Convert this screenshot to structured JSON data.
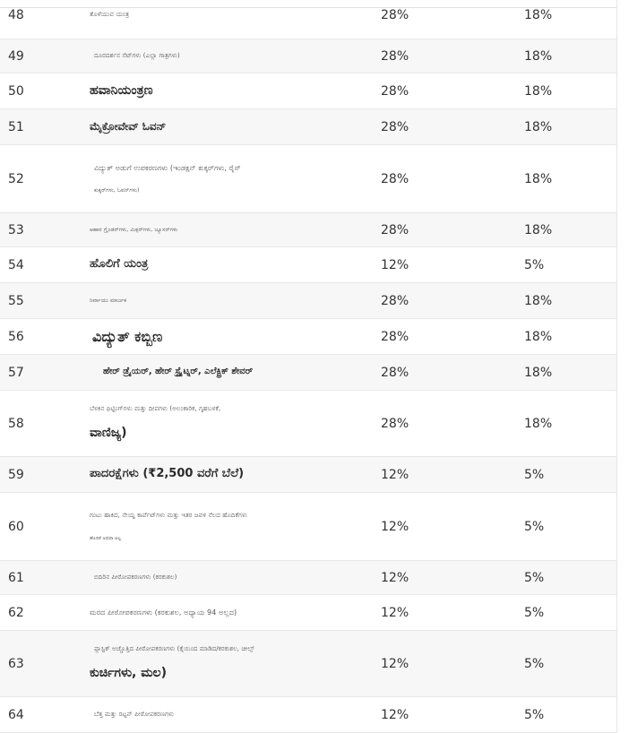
{
  "rows": [
    {
      "no": "48",
      "item": "ತೊಳೆಯುವ ಯಂತ್ರ",
      "old": "28%",
      "new": "18%"
    },
    {
      "no": "49",
      "item": "ದೂರದರ್ಶನ ಸೆಟ್‌ಗಳು (ಎಲ್ಲಾ ಗಾತ್ರಗಳು)",
      "old": "28%",
      "new": "18%"
    },
    {
      "no": "50",
      "item": "ಹವಾನಿಯಂತ್ರಣ",
      "old": "28%",
      "new": "18%"
    },
    {
      "no": "51",
      "item": "ಮೈಕ್ರೋವೇವ್ ಓವನ್",
      "old": "28%",
      "new": "18%"
    },
    {
      "no": "52",
      "item_l1": "ವಿದ್ಯುತ್ ಅಡುಗೆ ಉಪಕರಣಗಳು (ಇಂಡಕ್ಷನ್ ಕುಕ್ಕರ್‌ಗಳು, ರೈಸ್",
      "item_l2": "ಕುಕ್ಕರ್‌ಗಳು, ಓವನ್‌ಗಳು)",
      "old": "28%",
      "new": "18%"
    },
    {
      "no": "53",
      "item": "ಆಹಾರ ಗ್ರೈಂಡರ್‌ಗಳು, ಮಿಕ್ಸರ್‌ಗಳು, ಜ್ಯೂಸರ್‌ಗಳು",
      "old": "28%",
      "new": "18%"
    },
    {
      "no": "54",
      "item": "ಹೊಲಿಗೆ ಯಂತ್ರ",
      "old": "12%",
      "new": "5%"
    },
    {
      "no": "55",
      "item": "ನಿರ್ವಾಯು ಮಾರ್ಜಕ",
      "old": "28%",
      "new": "18%"
    },
    {
      "no": "56",
      "item": "ವಿದ್ಯುತ್ ಕಬ್ಬಿಣ",
      "old": "28%",
      "new": "18%"
    },
    {
      "no": "57",
      "item": "ಹೇರ್ ಡ್ರೈಯರ್, ಹೇರ್ ಸ್ಟ್ರೈಟ್ನರ್, ಎಲೆಕ್ಟ್ರಿಕ್ ಶೇವರ್",
      "old": "28%",
      "new": "18%"
    },
    {
      "no": "58",
      "item_l1": "ಬೆಳಕಿನ ಫಿಟ್ಟಿಂಗ್‌ಗಳು ಮತ್ತು ದೀಪಗಳು (ಅಲಂಕಾರಿಕ, ಗೃಹಬಳಕೆ,",
      "item_l2": "ವಾಣಿಜ್ಯ)",
      "old": "28%",
      "new": "18%"
    },
    {
      "no": "59",
      "item": "ಪಾದರಕ್ಷೆಗಳು (₹2,500 ವರೆಗೆ ಬೆಲೆ)",
      "old": "12%",
      "new": "5%"
    },
    {
      "no": "60",
      "item_l1": "ಗಂಟು ಹಾಕಿದ, ನೇಯ್ದ ಕಾರ್ಪೆಟ್‌ಗಳು ಮತ್ತು ಇತರ ಜವಳಿ ನೆಲದ ಹೊದಿಕೆಗಳು",
      "item_l2": "ಹೊದಿಕೆ ಅಥವಾ ಅಲ್ಲ",
      "old": "12%",
      "new": "5%"
    },
    {
      "no": "61",
      "item": "ಬಿದಿರಿನ ಪೀಠೋಪಕರಣಗಳು (ಕರಕುಶಲ)",
      "old": "12%",
      "new": "5%"
    },
    {
      "no": "62",
      "item": "ಮರದ ಪೀಠೋಪಕರಣಗಳು (ಕರಕುಶಲ, ಅಧ್ಯಾಯ 94 ಅಲ್ಲದ)",
      "old": "12%",
      "new": "5%"
    },
    {
      "no": "63",
      "item_l1": "ಪ್ಲಾಸ್ಟಿಕ್ ಅಚ್ಚೊತ್ತಿದ ಪೀಠೋಪಕರಣಗಳು (ಕೈಯಿಂದ ಮಾಡಿದ/ಕರಕುಶಲ, ಚೀಲ್ಸ್",
      "item_l2": "ಕುರ್ಚಿಗಳು, ಮಲ)",
      "old": "12%",
      "new": "5%"
    },
    {
      "no": "64",
      "item": "ಬೆತ್ತ ಮತ್ತು ರಟ್ಟನ್ ಪೀಠೋಪಕರಣಗಳು",
      "old": "12%",
      "new": "5%"
    }
  ]
}
